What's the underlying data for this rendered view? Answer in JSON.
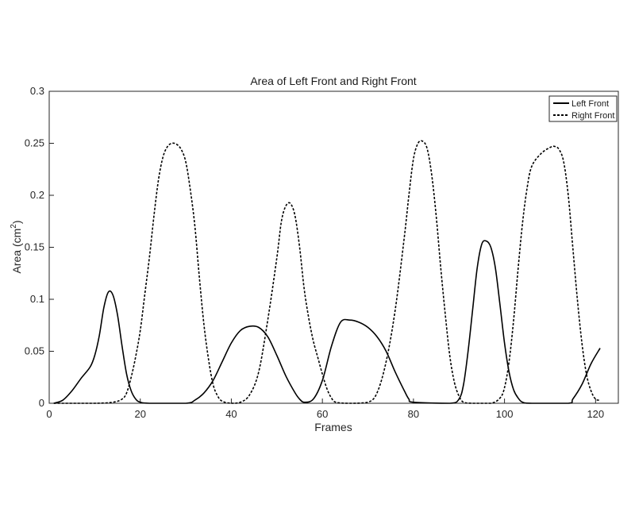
{
  "chart_data": {
    "type": "line",
    "title": "Area of Left Front and Right Front",
    "xlabel": "Frames",
    "ylabel": "Area (cm",
    "ylabel_superscript": "2",
    "ylabel_suffix": ")",
    "xlim": [
      0,
      125
    ],
    "ylim": [
      0,
      0.3
    ],
    "xticks": [
      0,
      20,
      40,
      60,
      80,
      100,
      120
    ],
    "xtick_labels": [
      "0",
      "20",
      "40",
      "60",
      "80",
      "100",
      "120"
    ],
    "yticks": [
      0,
      0.05,
      0.1,
      0.15,
      0.2,
      0.25,
      0.3
    ],
    "ytick_labels": [
      "0",
      "0.05",
      "0.1",
      "0.15",
      "0.2",
      "0.25",
      "0.3"
    ],
    "grid": false,
    "legend_position": "top-right",
    "series": [
      {
        "name": "Left Front",
        "style": "solid",
        "color": "#000000",
        "points": [
          [
            1,
            0
          ],
          [
            3,
            0.003
          ],
          [
            5,
            0.012
          ],
          [
            7,
            0.024
          ],
          [
            9,
            0.035
          ],
          [
            10,
            0.046
          ],
          [
            11,
            0.065
          ],
          [
            12,
            0.092
          ],
          [
            13,
            0.107
          ],
          [
            14,
            0.104
          ],
          [
            15,
            0.085
          ],
          [
            16,
            0.055
          ],
          [
            17,
            0.028
          ],
          [
            18,
            0.012
          ],
          [
            19,
            0.004
          ],
          [
            20,
            0.001
          ],
          [
            22,
            0
          ],
          [
            30,
            0
          ],
          [
            32,
            0.003
          ],
          [
            34,
            0.01
          ],
          [
            36,
            0.022
          ],
          [
            38,
            0.04
          ],
          [
            40,
            0.058
          ],
          [
            42,
            0.07
          ],
          [
            44,
            0.074
          ],
          [
            46,
            0.073
          ],
          [
            48,
            0.064
          ],
          [
            50,
            0.046
          ],
          [
            52,
            0.026
          ],
          [
            54,
            0.01
          ],
          [
            55,
            0.004
          ],
          [
            56,
            0.001
          ],
          [
            58,
            0.004
          ],
          [
            60,
            0.022
          ],
          [
            62,
            0.055
          ],
          [
            64,
            0.078
          ],
          [
            66,
            0.08
          ],
          [
            68,
            0.078
          ],
          [
            70,
            0.073
          ],
          [
            72,
            0.064
          ],
          [
            74,
            0.05
          ],
          [
            76,
            0.03
          ],
          [
            78,
            0.012
          ],
          [
            79,
            0.004
          ],
          [
            80,
            0.001
          ],
          [
            88,
            0
          ],
          [
            90,
            0.004
          ],
          [
            91,
            0.018
          ],
          [
            92,
            0.05
          ],
          [
            93,
            0.09
          ],
          [
            94,
            0.13
          ],
          [
            95,
            0.153
          ],
          [
            96,
            0.156
          ],
          [
            97,
            0.15
          ],
          [
            98,
            0.13
          ],
          [
            99,
            0.095
          ],
          [
            100,
            0.058
          ],
          [
            101,
            0.03
          ],
          [
            102,
            0.013
          ],
          [
            103,
            0.005
          ],
          [
            104,
            0.001
          ],
          [
            106,
            0
          ],
          [
            114,
            0
          ],
          [
            115,
            0.004
          ],
          [
            117,
            0.018
          ],
          [
            119,
            0.038
          ],
          [
            121,
            0.053
          ]
        ]
      },
      {
        "name": "Right Front",
        "style": "dashed",
        "color": "#000000",
        "points": [
          [
            1,
            0
          ],
          [
            10,
            0
          ],
          [
            14,
            0.001
          ],
          [
            16,
            0.004
          ],
          [
            17,
            0.01
          ],
          [
            18,
            0.025
          ],
          [
            19,
            0.045
          ],
          [
            20,
            0.07
          ],
          [
            21,
            0.105
          ],
          [
            22,
            0.14
          ],
          [
            23,
            0.18
          ],
          [
            24,
            0.215
          ],
          [
            25,
            0.237
          ],
          [
            26,
            0.247
          ],
          [
            27,
            0.25
          ],
          [
            28,
            0.249
          ],
          [
            29,
            0.244
          ],
          [
            30,
            0.232
          ],
          [
            31,
            0.205
          ],
          [
            32,
            0.17
          ],
          [
            33,
            0.12
          ],
          [
            34,
            0.075
          ],
          [
            35,
            0.042
          ],
          [
            36,
            0.018
          ],
          [
            37,
            0.007
          ],
          [
            38,
            0.002
          ],
          [
            40,
            0
          ],
          [
            42,
            0.001
          ],
          [
            44,
            0.008
          ],
          [
            46,
            0.03
          ],
          [
            48,
            0.08
          ],
          [
            50,
            0.14
          ],
          [
            51,
            0.175
          ],
          [
            52,
            0.19
          ],
          [
            53,
            0.192
          ],
          [
            54,
            0.18
          ],
          [
            55,
            0.15
          ],
          [
            56,
            0.11
          ],
          [
            57,
            0.082
          ],
          [
            58,
            0.06
          ],
          [
            59,
            0.044
          ],
          [
            60,
            0.028
          ],
          [
            61,
            0.014
          ],
          [
            62,
            0.005
          ],
          [
            63,
            0.001
          ],
          [
            66,
            0
          ],
          [
            70,
            0.001
          ],
          [
            72,
            0.01
          ],
          [
            74,
            0.04
          ],
          [
            76,
            0.09
          ],
          [
            78,
            0.16
          ],
          [
            79,
            0.2
          ],
          [
            80,
            0.235
          ],
          [
            81,
            0.25
          ],
          [
            82,
            0.252
          ],
          [
            83,
            0.245
          ],
          [
            84,
            0.22
          ],
          [
            85,
            0.18
          ],
          [
            86,
            0.13
          ],
          [
            87,
            0.085
          ],
          [
            88,
            0.045
          ],
          [
            89,
            0.02
          ],
          [
            90,
            0.007
          ],
          [
            91,
            0.001
          ],
          [
            93,
            0
          ],
          [
            97,
            0
          ],
          [
            99,
            0.005
          ],
          [
            100,
            0.015
          ],
          [
            101,
            0.04
          ],
          [
            102,
            0.08
          ],
          [
            103,
            0.13
          ],
          [
            104,
            0.175
          ],
          [
            105,
            0.208
          ],
          [
            106,
            0.228
          ],
          [
            108,
            0.24
          ],
          [
            110,
            0.246
          ],
          [
            111,
            0.247
          ],
          [
            112,
            0.244
          ],
          [
            113,
            0.232
          ],
          [
            114,
            0.2
          ],
          [
            115,
            0.15
          ],
          [
            116,
            0.1
          ],
          [
            117,
            0.058
          ],
          [
            118,
            0.028
          ],
          [
            119,
            0.012
          ],
          [
            120,
            0.004
          ],
          [
            121,
            0.003
          ]
        ]
      }
    ]
  }
}
